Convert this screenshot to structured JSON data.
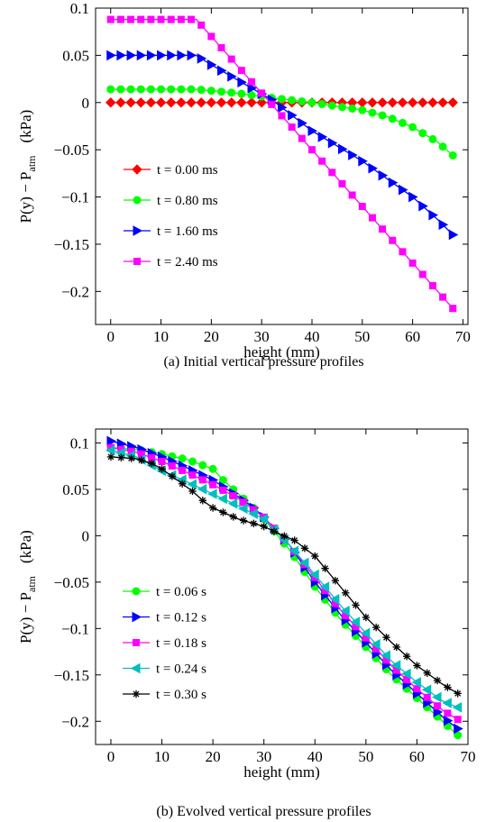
{
  "chart_data": [
    {
      "type": "line",
      "caption": "(a)  Initial vertical pressure profiles",
      "xlabel": "height  (mm)",
      "ylabel_main": "P(y) − P",
      "ylabel_sub": "atm",
      "ylabel_unit": "(kPa)",
      "xlim": [
        -3,
        71
      ],
      "ylim": [
        -0.235,
        0.1
      ],
      "xticks": [
        0,
        10,
        20,
        30,
        40,
        50,
        60,
        70
      ],
      "xticklabels": [
        "0",
        "10",
        "20",
        "30",
        "40",
        "50",
        "60",
        "70"
      ],
      "yticks": [
        0.1,
        0.05,
        0,
        -0.05,
        -0.1,
        -0.15,
        -0.2
      ],
      "yticklabels": [
        "0.1",
        "0.05",
        "0",
        "−0.05",
        "−0.1",
        "−0.15",
        "−0.2"
      ],
      "legend_position": "lower-left",
      "series": [
        {
          "name": "t = 0.00 ms",
          "color": "#ff0000",
          "marker": "diamond",
          "x": [
            0,
            68
          ],
          "y": [
            0,
            0
          ]
        },
        {
          "name": "t = 0.80 ms",
          "color": "#00ff00",
          "marker": "circle",
          "x": [
            0,
            17,
            25,
            32,
            40,
            50,
            55,
            60,
            65,
            68
          ],
          "y": [
            0.014,
            0.014,
            0.01,
            0.005,
            0.0,
            -0.008,
            -0.015,
            -0.026,
            -0.042,
            -0.056
          ]
        },
        {
          "name": "t = 1.60 ms",
          "color": "#0000ff",
          "marker": "triangle-right",
          "x": [
            0,
            17,
            20,
            32,
            40,
            50,
            60,
            65,
            68
          ],
          "y": [
            0.05,
            0.05,
            0.04,
            0.003,
            -0.03,
            -0.062,
            -0.1,
            -0.124,
            -0.14
          ]
        },
        {
          "name": "t = 2.40 ms",
          "color": "#ff00ff",
          "marker": "square",
          "x": [
            0,
            17,
            68
          ],
          "y": [
            0.088,
            0.088,
            -0.218
          ]
        }
      ]
    },
    {
      "type": "line",
      "caption": "(b)  Evolved vertical pressure profiles",
      "xlabel": "height  (mm)",
      "ylabel_main": "P(y) − P",
      "ylabel_sub": "atm",
      "ylabel_unit": "(kPa)",
      "xlim": [
        -3,
        70
      ],
      "ylim": [
        -0.225,
        0.115
      ],
      "xticks": [
        0,
        10,
        20,
        30,
        40,
        50,
        60,
        70
      ],
      "xticklabels": [
        "0",
        "10",
        "20",
        "30",
        "40",
        "50",
        "60",
        "70"
      ],
      "yticks": [
        0.1,
        0.05,
        0,
        -0.05,
        -0.1,
        -0.15,
        -0.2
      ],
      "yticklabels": [
        "0.1",
        "0.05",
        "0",
        "−0.05",
        "−0.1",
        "−0.15",
        "−0.2"
      ],
      "legend_position": "lower-left",
      "series": [
        {
          "name": "t = 0.06 s",
          "color": "#00ff00",
          "marker": "circle",
          "x": [
            0,
            5,
            10,
            15,
            20,
            22,
            25,
            28,
            30,
            35,
            40,
            45,
            50,
            55,
            60,
            65,
            68
          ],
          "y": [
            0.095,
            0.093,
            0.088,
            0.082,
            0.072,
            0.06,
            0.045,
            0.03,
            0.018,
            -0.015,
            -0.055,
            -0.09,
            -0.12,
            -0.15,
            -0.175,
            -0.2,
            -0.215
          ]
        },
        {
          "name": "t = 0.12 s",
          "color": "#0000ff",
          "marker": "triangle-right",
          "x": [
            0,
            5,
            10,
            15,
            20,
            25,
            28,
            30,
            35,
            40,
            45,
            50,
            55,
            60,
            65,
            68
          ],
          "y": [
            0.102,
            0.095,
            0.085,
            0.073,
            0.06,
            0.042,
            0.03,
            0.02,
            -0.01,
            -0.05,
            -0.085,
            -0.115,
            -0.145,
            -0.17,
            -0.195,
            -0.208
          ]
        },
        {
          "name": "t = 0.18 s",
          "color": "#ff00ff",
          "marker": "square",
          "x": [
            0,
            5,
            10,
            15,
            20,
            25,
            30,
            35,
            40,
            45,
            50,
            55,
            60,
            65,
            68
          ],
          "y": [
            0.095,
            0.09,
            0.08,
            0.068,
            0.055,
            0.04,
            0.02,
            -0.01,
            -0.045,
            -0.08,
            -0.11,
            -0.14,
            -0.165,
            -0.188,
            -0.198
          ]
        },
        {
          "name": "t = 0.24 s",
          "color": "#00bfbf",
          "marker": "triangle-left",
          "x": [
            0,
            5,
            10,
            15,
            20,
            25,
            30,
            35,
            40,
            45,
            50,
            55,
            60,
            65,
            68
          ],
          "y": [
            0.092,
            0.085,
            0.07,
            0.058,
            0.045,
            0.032,
            0.018,
            -0.01,
            -0.042,
            -0.075,
            -0.105,
            -0.135,
            -0.158,
            -0.178,
            -0.185
          ]
        },
        {
          "name": "t = 0.30 s",
          "color": "#000000",
          "marker": "asterisk",
          "x": [
            0,
            5,
            8,
            10,
            13,
            16,
            18,
            20,
            25,
            30,
            33,
            36,
            40,
            45,
            50,
            55,
            60,
            65,
            68
          ],
          "y": [
            0.085,
            0.083,
            0.078,
            0.072,
            0.06,
            0.048,
            0.038,
            0.03,
            0.018,
            0.01,
            0.002,
            -0.005,
            -0.022,
            -0.055,
            -0.088,
            -0.115,
            -0.14,
            -0.16,
            -0.17
          ]
        }
      ]
    }
  ]
}
